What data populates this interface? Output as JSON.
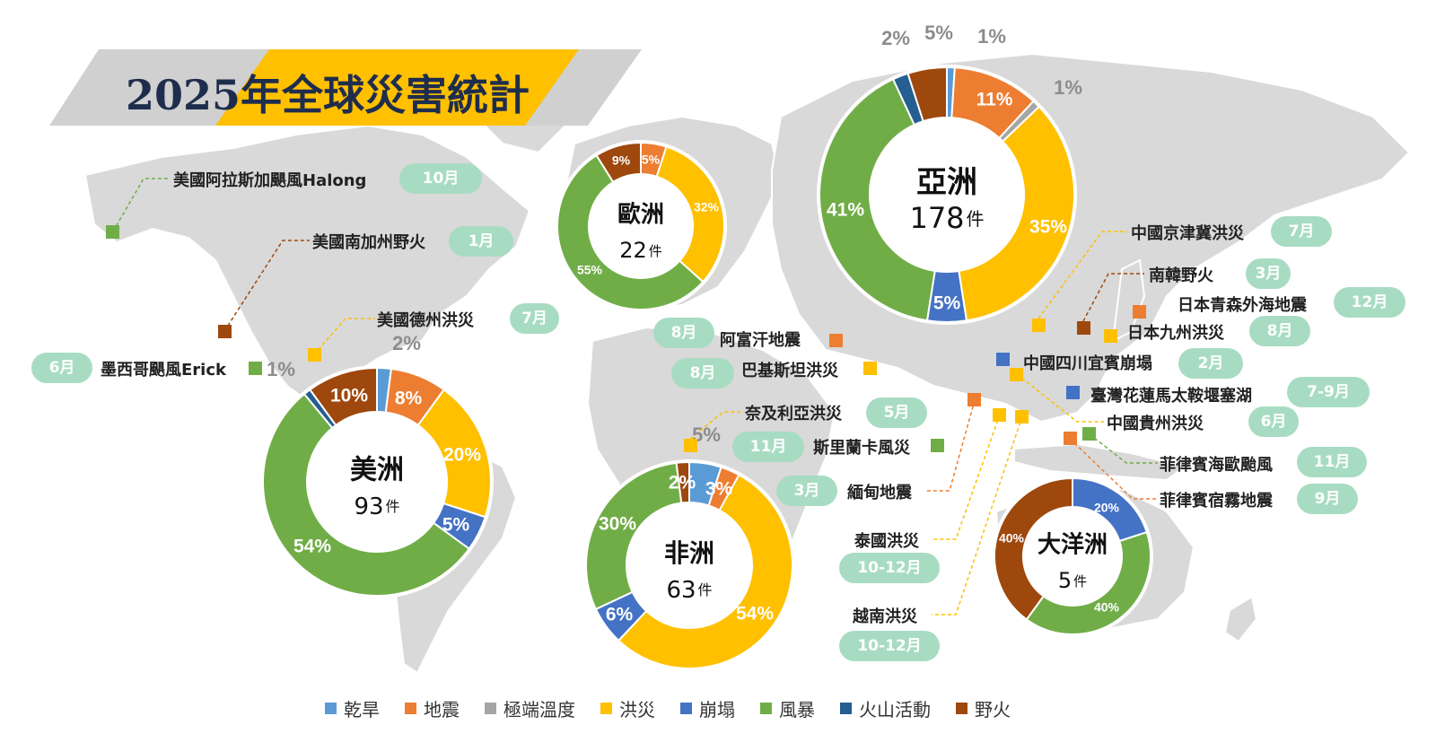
{
  "title": {
    "part1": "2025年",
    "part2": "全球災害統計"
  },
  "colors": {
    "乾旱": "#5b9bd5",
    "地震": "#ed7d31",
    "極端溫度": "#a5a5a5",
    "洪災": "#ffc000",
    "崩塌": "#4472c4",
    "風暴": "#70ad47",
    "火山活動": "#255e91",
    "野火": "#9e480e"
  },
  "legend": [
    "乾旱",
    "地震",
    "極端溫度",
    "洪災",
    "崩塌",
    "風暴",
    "火山活動",
    "野火"
  ],
  "chart_data": [
    {
      "type": "pie",
      "name": "美洲",
      "count": "93",
      "unit": "件",
      "slices": [
        {
          "category": "乾旱",
          "value": 2,
          "label": "2%"
        },
        {
          "category": "地震",
          "value": 8,
          "label": "8%"
        },
        {
          "category": "洪災",
          "value": 20,
          "label": "20%"
        },
        {
          "category": "崩塌",
          "value": 5,
          "label": "5%"
        },
        {
          "category": "風暴",
          "value": 54,
          "label": "54%"
        },
        {
          "category": "火山活動",
          "value": 1,
          "label": "1%"
        },
        {
          "category": "野火",
          "value": 10,
          "label": "10%"
        }
      ]
    },
    {
      "type": "pie",
      "name": "歐洲",
      "count": "22",
      "unit": "件",
      "slices": [
        {
          "category": "地震",
          "value": 5,
          "label": "5%"
        },
        {
          "category": "洪災",
          "value": 32,
          "label": "32%"
        },
        {
          "category": "風暴",
          "value": 55,
          "label": "55%"
        },
        {
          "category": "野火",
          "value": 9,
          "label": "9%"
        }
      ]
    },
    {
      "type": "pie",
      "name": "亞洲",
      "count": "178",
      "unit": "件",
      "slices": [
        {
          "category": "乾旱",
          "value": 1,
          "label": "1%"
        },
        {
          "category": "地震",
          "value": 11,
          "label": "11%"
        },
        {
          "category": "極端溫度",
          "value": 1,
          "label": "1%"
        },
        {
          "category": "洪災",
          "value": 35,
          "label": "35%"
        },
        {
          "category": "崩塌",
          "value": 5,
          "label": "5%"
        },
        {
          "category": "風暴",
          "value": 41,
          "label": "41%"
        },
        {
          "category": "火山活動",
          "value": 2,
          "label": "2%"
        },
        {
          "category": "野火",
          "value": 5,
          "label": "5%"
        }
      ]
    },
    {
      "type": "pie",
      "name": "非洲",
      "count": "63",
      "unit": "件",
      "slices": [
        {
          "category": "乾旱",
          "value": 5,
          "label": "5%"
        },
        {
          "category": "地震",
          "value": 3,
          "label": "3%"
        },
        {
          "category": "洪災",
          "value": 54,
          "label": "54%"
        },
        {
          "category": "崩塌",
          "value": 6,
          "label": "6%"
        },
        {
          "category": "風暴",
          "value": 30,
          "label": "30%"
        },
        {
          "category": "野火",
          "value": 2,
          "label": "2%"
        }
      ]
    },
    {
      "type": "pie",
      "name": "大洋洲",
      "count": "5",
      "unit": "件",
      "slices": [
        {
          "category": "崩塌",
          "value": 20,
          "label": "20%"
        },
        {
          "category": "風暴",
          "value": 40,
          "label": "40%"
        },
        {
          "category": "野火",
          "value": 40,
          "label": "40%"
        }
      ]
    }
  ],
  "events": [
    {
      "label": "美國阿拉斯加颶風Halong",
      "month": "10月",
      "category": "風暴"
    },
    {
      "label": "美國南加州野火",
      "month": "1月",
      "category": "野火"
    },
    {
      "label": "美國德州洪災",
      "month": "7月",
      "category": "洪災"
    },
    {
      "label": "墨西哥颶風Erick",
      "month": "6月",
      "category": "風暴"
    },
    {
      "label": "阿富汗地震",
      "month": "8月",
      "category": "地震"
    },
    {
      "label": "巴基斯坦洪災",
      "month": "8月",
      "category": "洪災"
    },
    {
      "label": "奈及利亞洪災",
      "month": "5月",
      "category": "洪災"
    },
    {
      "label": "斯里蘭卡風災",
      "month": "11月",
      "category": "風暴"
    },
    {
      "label": "緬甸地震",
      "month": "3月",
      "category": "地震"
    },
    {
      "label": "泰國洪災",
      "month": "10-12月",
      "category": "洪災"
    },
    {
      "label": "越南洪災",
      "month": "10-12月",
      "category": "洪災"
    },
    {
      "label": "中國京津冀洪災",
      "month": "7月",
      "category": "洪災"
    },
    {
      "label": "南韓野火",
      "month": "3月",
      "category": "野火"
    },
    {
      "label": "日本青森外海地震",
      "month": "12月",
      "category": "地震"
    },
    {
      "label": "日本九州洪災",
      "month": "8月",
      "category": "洪災"
    },
    {
      "label": "中國四川宜賓崩塌",
      "month": "2月",
      "category": "崩塌"
    },
    {
      "label": "臺灣花蓮馬太鞍堰塞湖",
      "month": "7-9月",
      "category": "崩塌"
    },
    {
      "label": "中國貴州洪災",
      "month": "6月",
      "category": "洪災"
    },
    {
      "label": "菲律賓海歐颱風",
      "month": "11月",
      "category": "風暴"
    },
    {
      "label": "菲律賓宿霧地震",
      "month": "9月",
      "category": "地震"
    }
  ]
}
